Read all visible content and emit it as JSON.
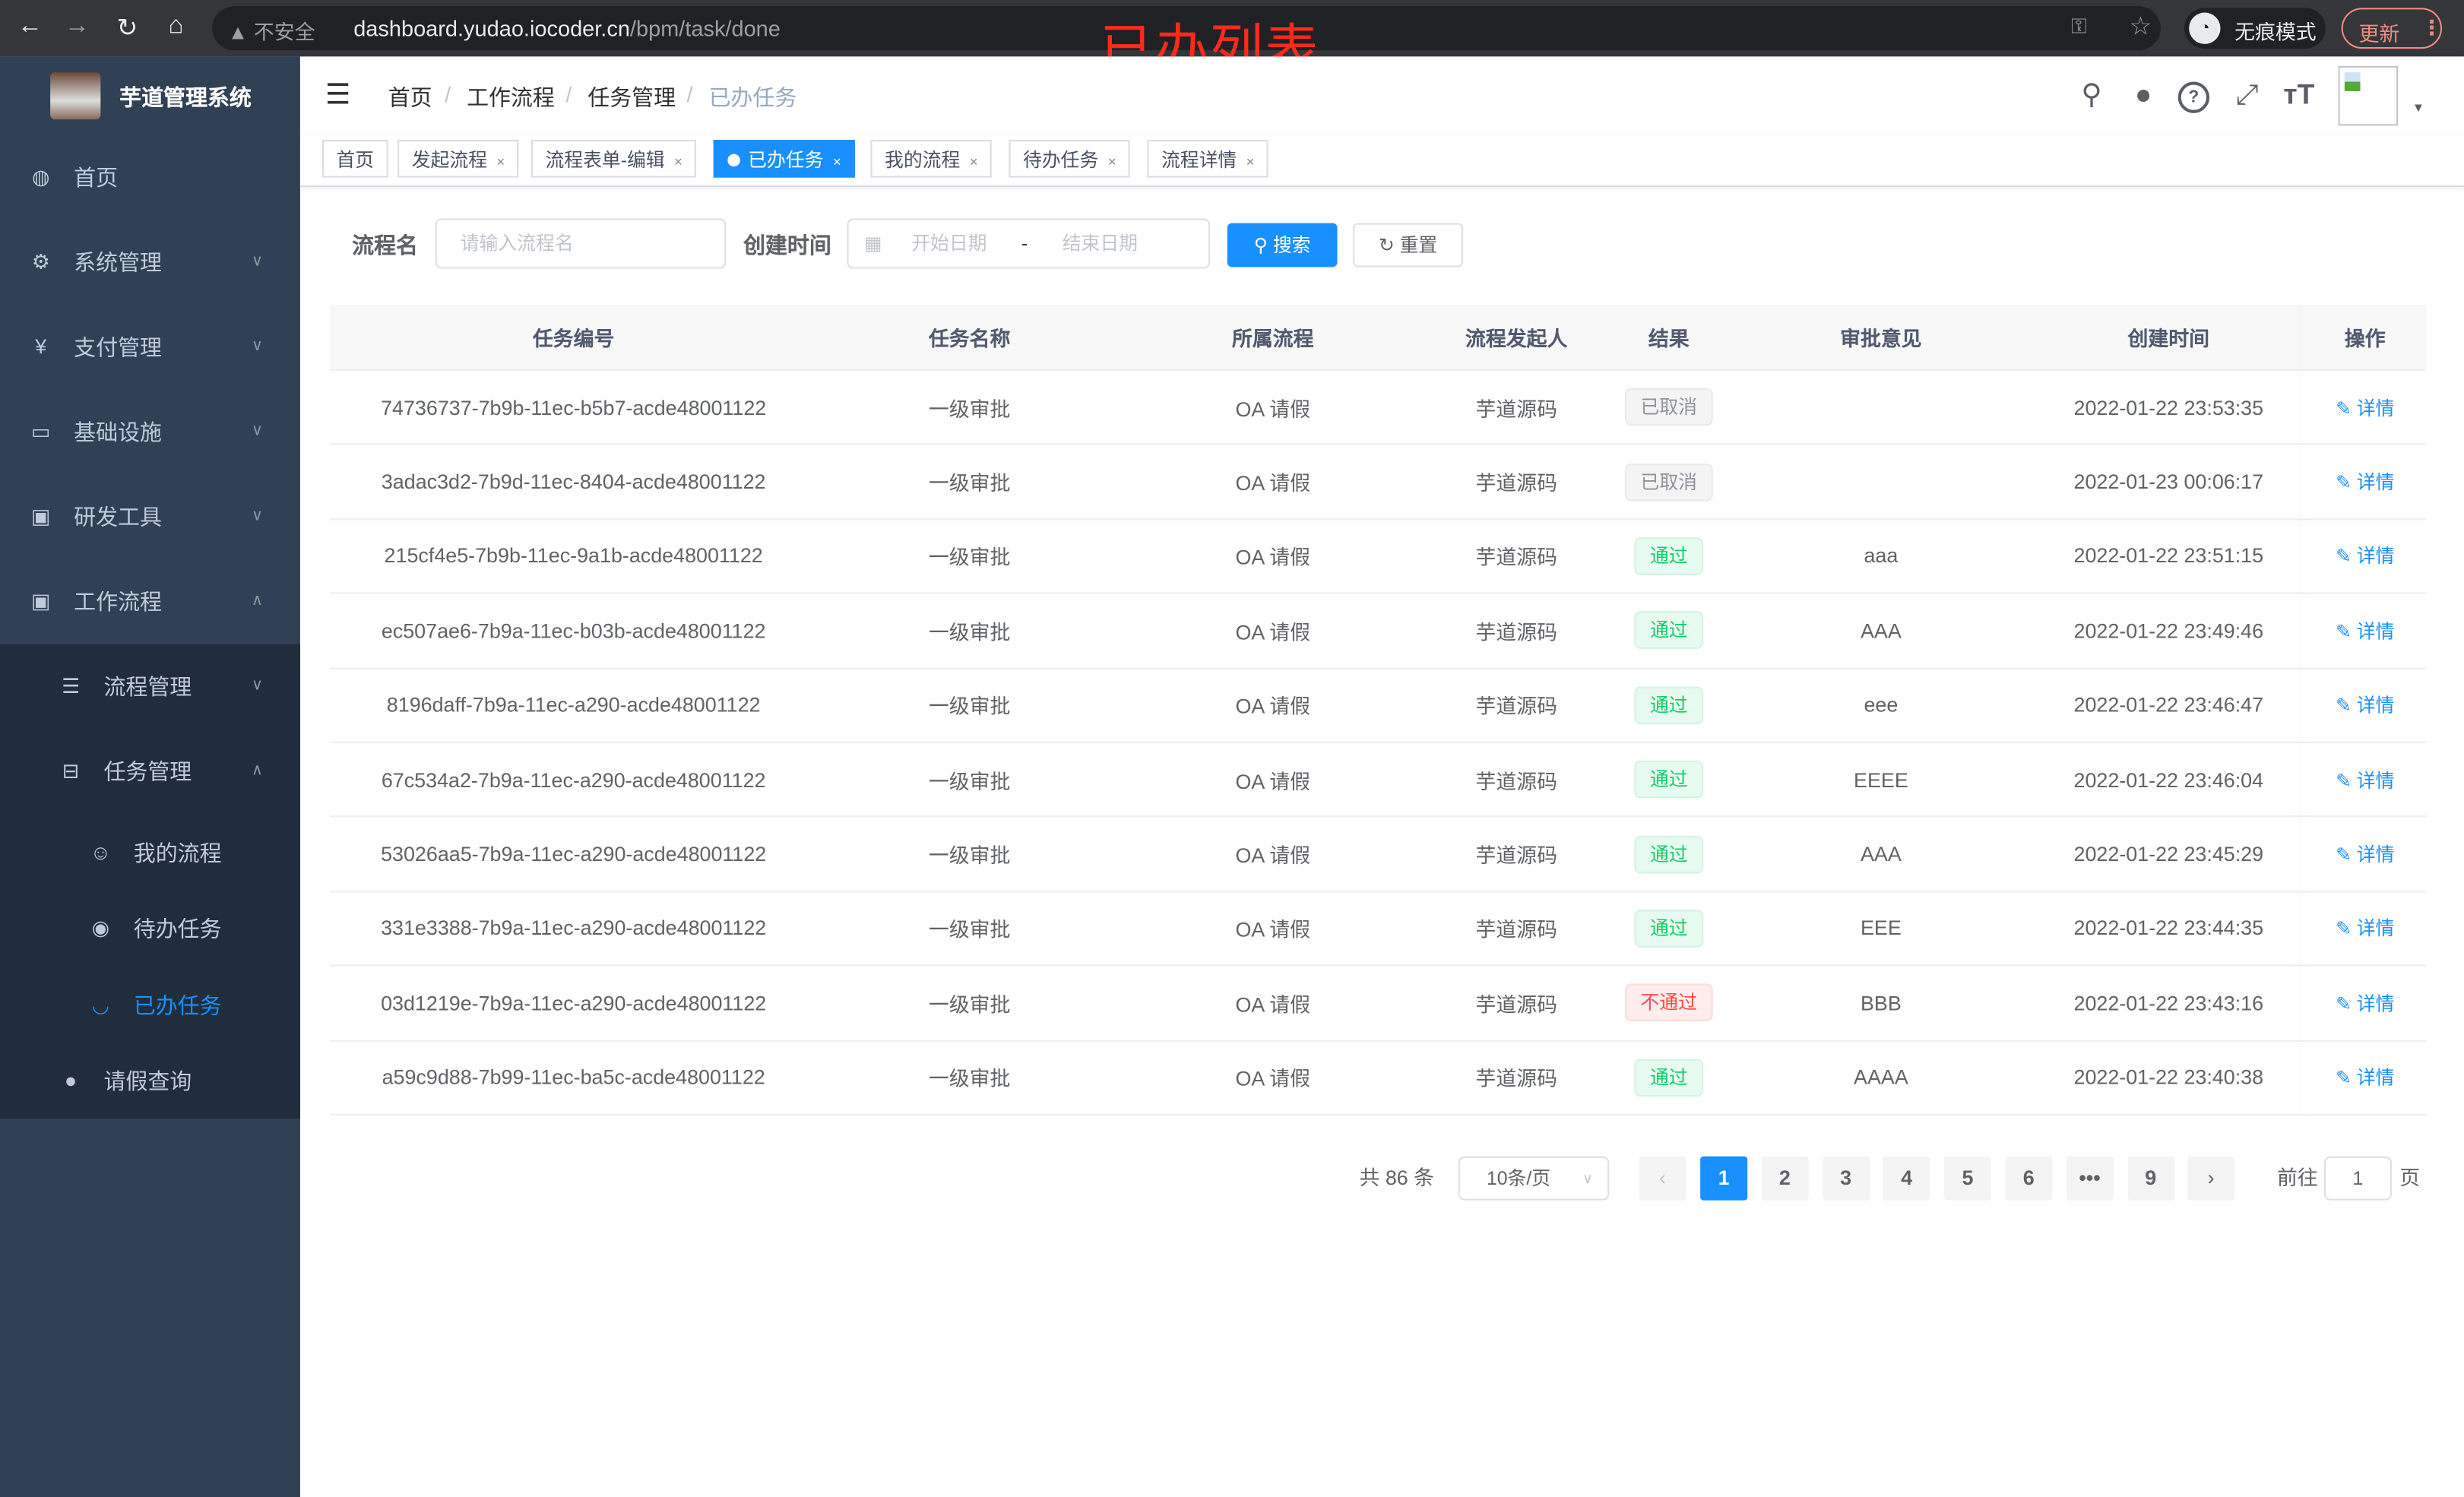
{
  "browser": {
    "security": "不安全",
    "url_host": "dashboard.yudao.iocoder.cn",
    "url_path": "/bpm/task/done",
    "incognito_label": "无痕模式",
    "update_label": "更新"
  },
  "annotation": "已办列表",
  "sidebar": {
    "app_name": "芋道管理系统",
    "items": [
      {
        "label": "首页",
        "icon": "dashboard-icon"
      },
      {
        "label": "系统管理",
        "icon": "gear-icon"
      },
      {
        "label": "支付管理",
        "icon": "yen-icon"
      },
      {
        "label": "基础设施",
        "icon": "monitor-icon"
      },
      {
        "label": "研发工具",
        "icon": "toolbox-icon"
      },
      {
        "label": "工作流程",
        "icon": "toolbox-icon"
      },
      {
        "label": "流程管理",
        "icon": "list-icon"
      },
      {
        "label": "任务管理",
        "icon": "tree-icon"
      },
      {
        "label": "我的流程",
        "icon": "people-icon"
      },
      {
        "label": "待办任务",
        "icon": "eye-icon"
      },
      {
        "label": "已办任务",
        "icon": "eye-closed-icon"
      },
      {
        "label": "请假查询",
        "icon": "user-icon"
      }
    ]
  },
  "breadcrumb": [
    "首页",
    "工作流程",
    "任务管理",
    "已办任务"
  ],
  "tags": [
    {
      "label": "首页",
      "closable": false
    },
    {
      "label": "发起流程",
      "closable": true
    },
    {
      "label": "流程表单-编辑",
      "closable": true
    },
    {
      "label": "已办任务",
      "closable": true,
      "active": true
    },
    {
      "label": "我的流程",
      "closable": true
    },
    {
      "label": "待办任务",
      "closable": true
    },
    {
      "label": "流程详情",
      "closable": true
    }
  ],
  "search": {
    "name_label": "流程名",
    "name_placeholder": "请输入流程名",
    "time_label": "创建时间",
    "start_placeholder": "开始日期",
    "range_sep": "-",
    "end_placeholder": "结束日期",
    "search_button": "搜索",
    "reset_button": "重置"
  },
  "table": {
    "columns": [
      "任务编号",
      "任务名称",
      "所属流程",
      "流程发起人",
      "结果",
      "审批意见",
      "创建时间",
      "操作"
    ],
    "rows": [
      {
        "id": "74736737-7b9b-11ec-b5b7-acde48001122",
        "name": "一级审批",
        "process": "OA 请假",
        "starter": "芋道源码",
        "result": "已取消",
        "result_type": "info",
        "comment": "",
        "time": "2022-01-22 23:53:35",
        "action": "详情"
      },
      {
        "id": "3adac3d2-7b9d-11ec-8404-acde48001122",
        "name": "一级审批",
        "process": "OA 请假",
        "starter": "芋道源码",
        "result": "已取消",
        "result_type": "info",
        "comment": "",
        "time": "2022-01-23 00:06:17",
        "action": "详情"
      },
      {
        "id": "215cf4e5-7b9b-11ec-9a1b-acde48001122",
        "name": "一级审批",
        "process": "OA 请假",
        "starter": "芋道源码",
        "result": "通过",
        "result_type": "success",
        "comment": "aaa",
        "time": "2022-01-22 23:51:15",
        "action": "详情"
      },
      {
        "id": "ec507ae6-7b9a-11ec-b03b-acde48001122",
        "name": "一级审批",
        "process": "OA 请假",
        "starter": "芋道源码",
        "result": "通过",
        "result_type": "success",
        "comment": "AAA",
        "time": "2022-01-22 23:49:46",
        "action": "详情"
      },
      {
        "id": "8196daff-7b9a-11ec-a290-acde48001122",
        "name": "一级审批",
        "process": "OA 请假",
        "starter": "芋道源码",
        "result": "通过",
        "result_type": "success",
        "comment": "eee",
        "time": "2022-01-22 23:46:47",
        "action": "详情"
      },
      {
        "id": "67c534a2-7b9a-11ec-a290-acde48001122",
        "name": "一级审批",
        "process": "OA 请假",
        "starter": "芋道源码",
        "result": "通过",
        "result_type": "success",
        "comment": "EEEE",
        "time": "2022-01-22 23:46:04",
        "action": "详情"
      },
      {
        "id": "53026aa5-7b9a-11ec-a290-acde48001122",
        "name": "一级审批",
        "process": "OA 请假",
        "starter": "芋道源码",
        "result": "通过",
        "result_type": "success",
        "comment": "AAA",
        "time": "2022-01-22 23:45:29",
        "action": "详情"
      },
      {
        "id": "331e3388-7b9a-11ec-a290-acde48001122",
        "name": "一级审批",
        "process": "OA 请假",
        "starter": "芋道源码",
        "result": "通过",
        "result_type": "success",
        "comment": "EEE",
        "time": "2022-01-22 23:44:35",
        "action": "详情"
      },
      {
        "id": "03d1219e-7b9a-11ec-a290-acde48001122",
        "name": "一级审批",
        "process": "OA 请假",
        "starter": "芋道源码",
        "result": "不通过",
        "result_type": "danger",
        "comment": "BBB",
        "time": "2022-01-22 23:43:16",
        "action": "详情"
      },
      {
        "id": "a59c9d88-7b99-11ec-ba5c-acde48001122",
        "name": "一级审批",
        "process": "OA 请假",
        "starter": "芋道源码",
        "result": "通过",
        "result_type": "success",
        "comment": "AAAA",
        "time": "2022-01-22 23:40:38",
        "action": "详情"
      }
    ]
  },
  "pagination": {
    "total": "共 86 条",
    "page_size": "10条/页",
    "pages": [
      "1",
      "2",
      "3",
      "4",
      "5",
      "6",
      "•••",
      "9"
    ],
    "current": "1",
    "goto_label": "前往",
    "goto_value": "1",
    "goto_suffix": "页"
  },
  "colors": {
    "primary": "#1890ff",
    "sidebar": "#304156",
    "submenu": "#1f2d3d",
    "success": "#13ce66",
    "danger": "#ff4949",
    "annotation": "#ff2a1a"
  }
}
